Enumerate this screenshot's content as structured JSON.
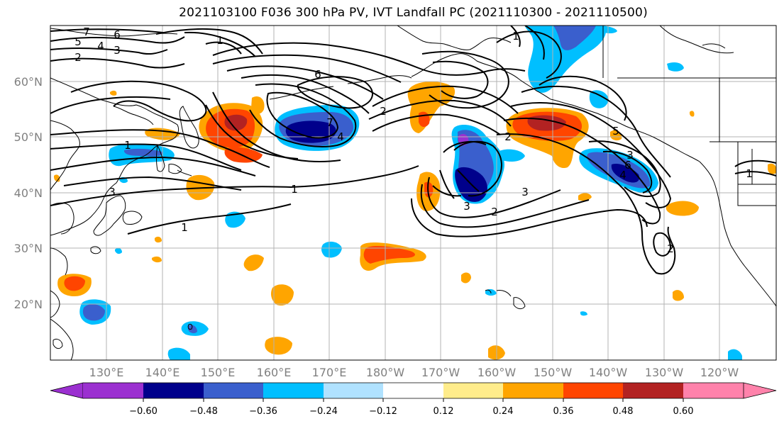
{
  "title": "2021103100 F036 300 hPa PV, IVT Landfall PC (2021110300 - 2021110500)",
  "lat_ticks": [
    "60°N",
    "50°N",
    "40°N",
    "30°N",
    "20°N"
  ],
  "lon_ticks": [
    "130°E",
    "140°E",
    "150°E",
    "160°E",
    "170°E",
    "180°W",
    "170°W",
    "160°W",
    "150°W",
    "140°W",
    "130°W",
    "120°W"
  ],
  "colorbar": {
    "tick_labels": [
      "−0.60",
      "−0.48",
      "−0.36",
      "−0.24",
      "−0.12",
      "0.12",
      "0.24",
      "0.36",
      "0.48",
      "0.60"
    ],
    "colors": [
      "#9b30d0",
      "#00008b",
      "#3a5fcd",
      "#00bfff",
      "#b0e2ff",
      "#ffffff",
      "#ffec8b",
      "#ffa500",
      "#ff4500",
      "#b22222",
      "#ff82ab"
    ]
  },
  "contour_labels": [
    "7",
    "6",
    "5",
    "4",
    "3",
    "2",
    "1",
    "1",
    "1",
    "3",
    "1",
    "6",
    "7",
    "4",
    "2",
    "1",
    "3",
    "2",
    "3",
    "2",
    "3",
    "5",
    "6",
    "4",
    "1",
    "2"
  ]
}
